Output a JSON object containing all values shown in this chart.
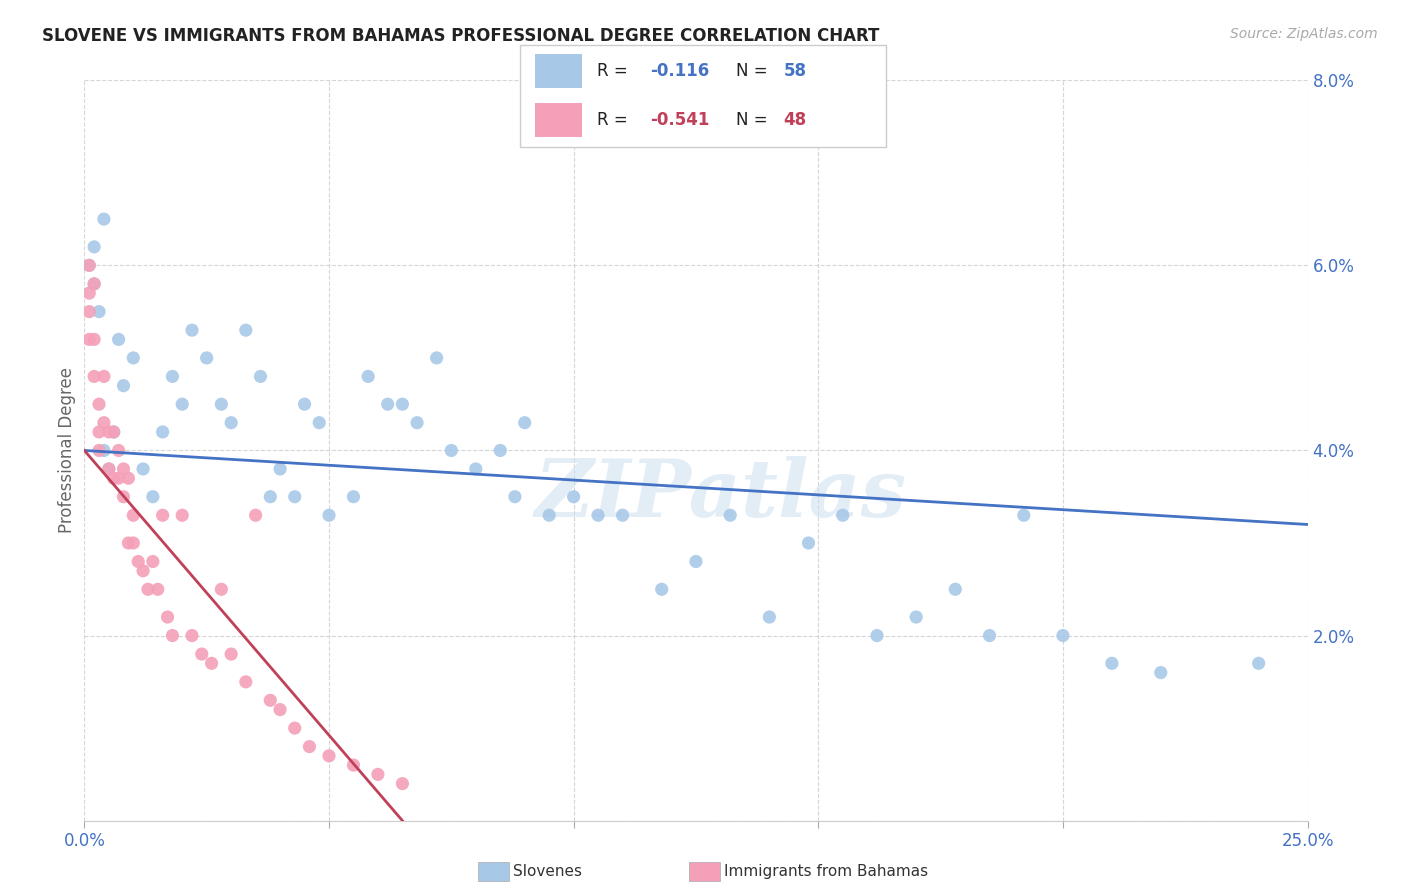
{
  "title": "SLOVENE VS IMMIGRANTS FROM BAHAMAS PROFESSIONAL DEGREE CORRELATION CHART",
  "source": "Source: ZipAtlas.com",
  "ylabel": "Professional Degree",
  "xlim": [
    0,
    0.25
  ],
  "ylim": [
    0,
    0.08
  ],
  "xticks": [
    0.0,
    0.05,
    0.1,
    0.15,
    0.2,
    0.25
  ],
  "yticks": [
    0.0,
    0.02,
    0.04,
    0.06,
    0.08
  ],
  "R_slovene": -0.116,
  "N_slovene": 58,
  "R_bahamas": -0.541,
  "N_bahamas": 48,
  "blue_color": "#a8c8e8",
  "pink_color": "#f4a0b8",
  "blue_line_color": "#4472c4",
  "pink_line_color": "#c0405a",
  "watermark": "ZIPatlas",
  "slovenes_x": [
    0.001,
    0.002,
    0.002,
    0.003,
    0.004,
    0.004,
    0.005,
    0.006,
    0.007,
    0.008,
    0.01,
    0.012,
    0.014,
    0.016,
    0.018,
    0.02,
    0.022,
    0.025,
    0.028,
    0.03,
    0.033,
    0.036,
    0.038,
    0.04,
    0.043,
    0.045,
    0.048,
    0.05,
    0.055,
    0.058,
    0.062,
    0.065,
    0.068,
    0.072,
    0.075,
    0.08,
    0.085,
    0.088,
    0.09,
    0.095,
    0.1,
    0.105,
    0.11,
    0.118,
    0.125,
    0.132,
    0.14,
    0.148,
    0.155,
    0.162,
    0.17,
    0.178,
    0.185,
    0.192,
    0.2,
    0.21,
    0.22,
    0.24
  ],
  "slovenes_y": [
    0.06,
    0.062,
    0.058,
    0.055,
    0.065,
    0.04,
    0.038,
    0.042,
    0.052,
    0.047,
    0.05,
    0.038,
    0.035,
    0.042,
    0.048,
    0.045,
    0.053,
    0.05,
    0.045,
    0.043,
    0.053,
    0.048,
    0.035,
    0.038,
    0.035,
    0.045,
    0.043,
    0.033,
    0.035,
    0.048,
    0.045,
    0.045,
    0.043,
    0.05,
    0.04,
    0.038,
    0.04,
    0.035,
    0.043,
    0.033,
    0.035,
    0.033,
    0.033,
    0.025,
    0.028,
    0.033,
    0.022,
    0.03,
    0.033,
    0.02,
    0.022,
    0.025,
    0.02,
    0.033,
    0.02,
    0.017,
    0.016,
    0.017
  ],
  "bahamas_x": [
    0.001,
    0.001,
    0.001,
    0.001,
    0.002,
    0.002,
    0.002,
    0.003,
    0.003,
    0.003,
    0.004,
    0.004,
    0.005,
    0.005,
    0.006,
    0.006,
    0.007,
    0.007,
    0.008,
    0.008,
    0.009,
    0.009,
    0.01,
    0.01,
    0.011,
    0.012,
    0.013,
    0.014,
    0.015,
    0.016,
    0.017,
    0.018,
    0.02,
    0.022,
    0.024,
    0.026,
    0.028,
    0.03,
    0.033,
    0.035,
    0.038,
    0.04,
    0.043,
    0.046,
    0.05,
    0.055,
    0.06,
    0.065
  ],
  "bahamas_y": [
    0.06,
    0.057,
    0.055,
    0.052,
    0.058,
    0.052,
    0.048,
    0.045,
    0.042,
    0.04,
    0.048,
    0.043,
    0.042,
    0.038,
    0.042,
    0.037,
    0.04,
    0.037,
    0.038,
    0.035,
    0.037,
    0.03,
    0.033,
    0.03,
    0.028,
    0.027,
    0.025,
    0.028,
    0.025,
    0.033,
    0.022,
    0.02,
    0.033,
    0.02,
    0.018,
    0.017,
    0.025,
    0.018,
    0.015,
    0.033,
    0.013,
    0.012,
    0.01,
    0.008,
    0.007,
    0.006,
    0.005,
    0.004
  ],
  "blue_line_x": [
    0.0,
    0.25
  ],
  "blue_line_y": [
    0.04,
    0.032
  ],
  "pink_line_x": [
    0.0,
    0.065
  ],
  "pink_line_y": [
    0.04,
    0.0
  ]
}
